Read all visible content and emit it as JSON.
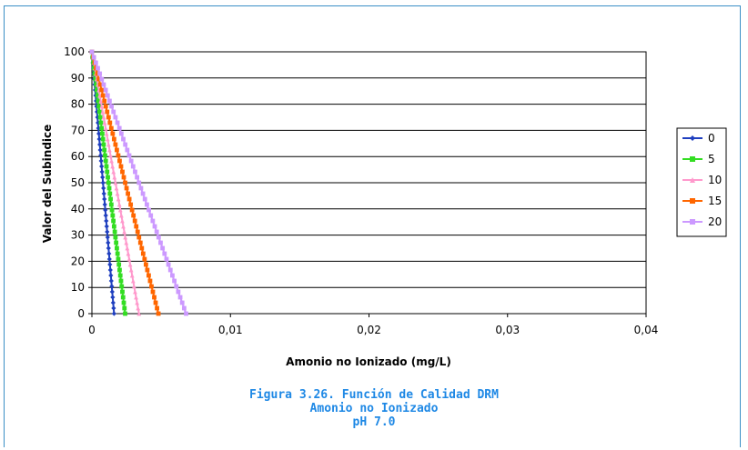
{
  "chart_data": {
    "type": "line",
    "title": "",
    "xlabel": "Amonio no Ionizado (mg/L)",
    "ylabel": "Valor del Subindice",
    "xlim": [
      0,
      0.04
    ],
    "ylim": [
      0,
      100
    ],
    "x_ticks": [
      "0",
      "0,01",
      "0,02",
      "0,03",
      "0,04"
    ],
    "y_ticks": [
      "0",
      "10",
      "20",
      "30",
      "40",
      "50",
      "60",
      "70",
      "80",
      "90",
      "100"
    ],
    "grid": true,
    "legend_position": "right",
    "series": [
      {
        "name": "0",
        "color": "#1f3fbf",
        "marker": "diamond",
        "x": [
          0,
          0.0016
        ],
        "y": [
          100,
          0
        ]
      },
      {
        "name": "5",
        "color": "#33dd22",
        "marker": "square",
        "x": [
          0,
          0.0024
        ],
        "y": [
          100,
          0
        ]
      },
      {
        "name": "10",
        "color": "#ff99cc",
        "marker": "triangle",
        "x": [
          0,
          0.0034
        ],
        "y": [
          100,
          0
        ]
      },
      {
        "name": "15",
        "color": "#ff6600",
        "marker": "square",
        "x": [
          0,
          0.0048
        ],
        "y": [
          100,
          0
        ]
      },
      {
        "name": "20",
        "color": "#cc99ff",
        "marker": "square",
        "x": [
          0,
          0.0068
        ],
        "y": [
          100,
          0
        ]
      }
    ]
  },
  "caption": {
    "line1": "Figura 3.26. Función de Calidad DRM",
    "line2": "Amonio no Ionizado",
    "line3": "pH 7.0"
  }
}
